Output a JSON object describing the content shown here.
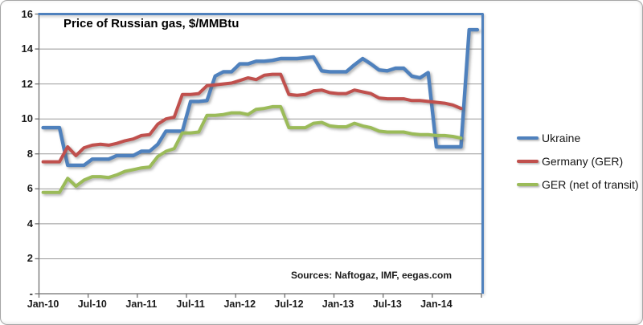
{
  "title": "Price of Russian gas, $/MMBtu",
  "source_note": "Sources: Naftogaz, IMF, eegas.com",
  "colors": {
    "ukraine": "#4F81BD",
    "germany": "#C0504D",
    "ger_net_of_transit": "#9BBB59",
    "gridline": "#999999",
    "axis": "#6f6f6f",
    "plot_border": "#4F81BD",
    "background": "#ffffff"
  },
  "chart_data": {
    "type": "line",
    "title": "Price of Russian gas, $/MMBtu",
    "xlabel": "",
    "ylabel": "$/MMBtu",
    "ylim": [
      0,
      16
    ],
    "y_step": 2,
    "grid": "horizontal",
    "legend_position": "right",
    "x_interval": "monthly",
    "x_start": "Jan-2010",
    "x_tick_labels": [
      "Jan-10",
      "Jul-10",
      "Jan-11",
      "Jul-11",
      "Jan-12",
      "Jul-12",
      "Jan-13",
      "Jul-13",
      "Jan-14"
    ],
    "y_tick_labels": [
      "16",
      "14",
      "12",
      "10",
      "8",
      "6",
      "4",
      "2",
      "-"
    ],
    "series": [
      {
        "name": "Ukraine",
        "color": "#4F81BD",
        "x_end": "Jun-2014",
        "values": [
          9.5,
          9.5,
          9.5,
          7.35,
          7.35,
          7.35,
          7.7,
          7.7,
          7.7,
          7.9,
          7.9,
          7.9,
          8.15,
          8.15,
          8.55,
          9.3,
          9.3,
          9.3,
          11.0,
          11.0,
          11.05,
          12.45,
          12.7,
          12.7,
          13.15,
          13.15,
          13.3,
          13.3,
          13.35,
          13.45,
          13.45,
          13.45,
          13.5,
          13.55,
          12.75,
          12.7,
          12.7,
          12.7,
          13.1,
          13.45,
          13.15,
          12.8,
          12.75,
          12.9,
          12.9,
          12.45,
          12.35,
          12.65,
          8.4,
          8.4,
          8.4,
          8.4,
          15.1,
          15.1
        ]
      },
      {
        "name": "Germany (GER)",
        "color": "#C0504D",
        "x_end": "Apr-2014",
        "values": [
          7.55,
          7.55,
          7.55,
          8.4,
          7.9,
          8.35,
          8.5,
          8.55,
          8.5,
          8.6,
          8.75,
          8.85,
          9.05,
          9.1,
          9.7,
          10.0,
          10.1,
          11.4,
          11.4,
          11.45,
          11.9,
          11.95,
          12.0,
          12.05,
          12.2,
          12.35,
          12.25,
          12.5,
          12.55,
          12.55,
          11.4,
          11.35,
          11.4,
          11.6,
          11.65,
          11.5,
          11.45,
          11.45,
          11.65,
          11.55,
          11.45,
          11.2,
          11.15,
          11.15,
          11.15,
          11.05,
          11.05,
          11.0,
          10.95,
          10.9,
          10.8,
          10.6
        ]
      },
      {
        "name": "GER (net of transit)",
        "color": "#9BBB59",
        "x_end": "Apr-2014",
        "values": [
          5.8,
          5.8,
          5.8,
          6.6,
          6.15,
          6.5,
          6.7,
          6.7,
          6.65,
          6.8,
          7.0,
          7.1,
          7.2,
          7.25,
          7.85,
          8.15,
          8.3,
          9.2,
          9.2,
          9.25,
          10.2,
          10.2,
          10.25,
          10.35,
          10.35,
          10.25,
          10.55,
          10.6,
          10.7,
          10.7,
          9.5,
          9.5,
          9.5,
          9.75,
          9.8,
          9.6,
          9.55,
          9.55,
          9.75,
          9.6,
          9.5,
          9.3,
          9.25,
          9.25,
          9.25,
          9.15,
          9.1,
          9.1,
          9.05,
          9.05,
          9.0,
          8.9
        ]
      }
    ]
  }
}
